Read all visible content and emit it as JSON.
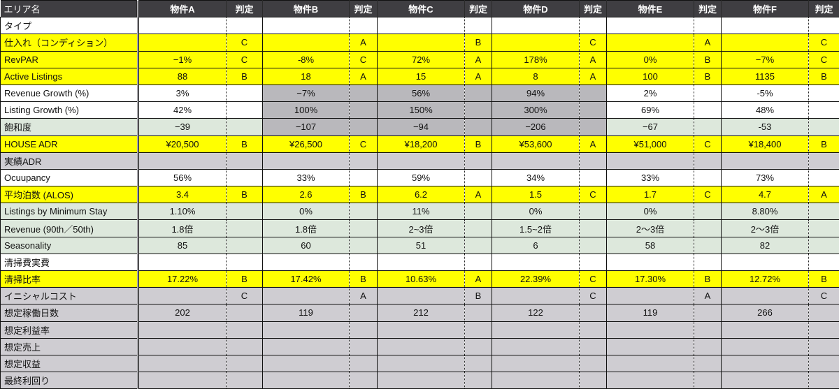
{
  "colors": {
    "header": "#3f3e42",
    "white": "#ffffff",
    "yellow": "#ffff00",
    "green": "#dde8dc",
    "grey": "#cfcdd2",
    "shaded": "#b9b8bc"
  },
  "header": {
    "label": "エリア名",
    "properties": [
      "物件A",
      "物件B",
      "物件C",
      "物件D",
      "物件E",
      "物件F"
    ],
    "judge_label": "判定"
  },
  "rows": [
    {
      "label": "タイプ",
      "style": "white",
      "values": [
        "",
        "",
        "",
        "",
        "",
        ""
      ],
      "judges": [
        "",
        "",
        "",
        "",
        "",
        ""
      ]
    },
    {
      "label": "仕入れ（コンディション）",
      "style": "yellow",
      "values": [
        "",
        "",
        "",
        "",
        "",
        ""
      ],
      "judges": [
        "C",
        "A",
        "B",
        "C",
        "A",
        "C"
      ]
    },
    {
      "label": "RevPAR",
      "style": "yellow",
      "values": [
        "−1%",
        "-8%",
        "72%",
        "178%",
        "0%",
        "−7%"
      ],
      "judges": [
        "C",
        "C",
        "A",
        "A",
        "B",
        "C"
      ]
    },
    {
      "label": "Active Listings",
      "style": "yellow",
      "values": [
        "88",
        "18",
        "15",
        "8",
        "100",
        "1135"
      ],
      "judges": [
        "B",
        "A",
        "A",
        "A",
        "B",
        "B"
      ]
    },
    {
      "label": "Revenue Growth (%)",
      "style": "white",
      "values": [
        "3%",
        "−7%",
        "56%",
        "94%",
        "2%",
        "-5%"
      ],
      "judges": [
        "",
        "",
        "",
        "",
        "",
        ""
      ],
      "shaded": [
        1,
        2,
        3
      ]
    },
    {
      "label": "Listing Growth (%)",
      "style": "white",
      "values": [
        "42%",
        "100%",
        "150%",
        "300%",
        "69%",
        "48%"
      ],
      "judges": [
        "",
        "",
        "",
        "",
        "",
        ""
      ],
      "shaded": [
        1,
        2,
        3
      ]
    },
    {
      "label": "飽和度",
      "style": "green",
      "values": [
        "−39",
        "−107",
        "−94",
        "−206",
        "−67",
        "-53"
      ],
      "judges": [
        "",
        "",
        "",
        "",
        "",
        ""
      ],
      "shaded": [
        1,
        2,
        3
      ]
    },
    {
      "label": "HOUSE ADR",
      "style": "yellow",
      "values": [
        "¥20,500",
        "¥26,500",
        "¥18,200",
        "¥53,600",
        "¥51,000",
        "¥18,400"
      ],
      "judges": [
        "B",
        "C",
        "B",
        "A",
        "C",
        "B"
      ]
    },
    {
      "label": "実績ADR",
      "style": "grey",
      "values": [
        "",
        "",
        "",
        "",
        "",
        ""
      ],
      "judges": [
        "",
        "",
        "",
        "",
        "",
        ""
      ]
    },
    {
      "label": "Ocuupancy",
      "style": "white",
      "values": [
        "56%",
        "33%",
        "59%",
        "34%",
        "33%",
        "73%"
      ],
      "judges": [
        "",
        "",
        "",
        "",
        "",
        ""
      ]
    },
    {
      "label": "平均泊数 (ALOS)",
      "style": "yellow",
      "values": [
        "3.4",
        "2.6",
        "6.2",
        "1.5",
        "1.7",
        "4.7"
      ],
      "judges": [
        "B",
        "B",
        "A",
        "C",
        "C",
        "A"
      ]
    },
    {
      "label": "Listings by Minimum Stay",
      "style": "green",
      "values": [
        "1.10%",
        "0%",
        "11%",
        "0%",
        "0%",
        "8.80%"
      ],
      "judges": [
        "",
        "",
        "",
        "",
        "",
        ""
      ]
    },
    {
      "label": "Revenue (90th／50th)",
      "style": "green",
      "values": [
        "1.8倍",
        "1.8倍",
        "2~3倍",
        "1.5~2倍",
        "2〜3倍",
        "2〜3倍"
      ],
      "judges": [
        "",
        "",
        "",
        "",
        "",
        ""
      ]
    },
    {
      "label": "Seasonality",
      "style": "green",
      "values": [
        "85",
        "60",
        "51",
        "6",
        "58",
        "82"
      ],
      "judges": [
        "",
        "",
        "",
        "",
        "",
        ""
      ]
    },
    {
      "label": "清掃費実費",
      "style": "white",
      "values": [
        "",
        "",
        "",
        "",
        "",
        ""
      ],
      "judges": [
        "",
        "",
        "",
        "",
        "",
        ""
      ]
    },
    {
      "label": "清掃比率",
      "style": "yellow",
      "values": [
        "17.22%",
        "17.42%",
        "10.63%",
        "22.39%",
        "17.30%",
        "12.72%"
      ],
      "judges": [
        "B",
        "B",
        "A",
        "C",
        "B",
        "B"
      ]
    },
    {
      "label": "イニシャルコスト",
      "style": "grey",
      "values": [
        "",
        "",
        "",
        "",
        "",
        ""
      ],
      "judges": [
        "C",
        "A",
        "B",
        "C",
        "A",
        "C"
      ]
    },
    {
      "label": "想定稼働日数",
      "style": "grey",
      "values": [
        "202",
        "119",
        "212",
        "122",
        "119",
        "266"
      ],
      "judges": [
        "",
        "",
        "",
        "",
        "",
        ""
      ]
    },
    {
      "label": "想定利益率",
      "style": "grey",
      "values": [
        "",
        "",
        "",
        "",
        "",
        ""
      ],
      "judges": [
        "",
        "",
        "",
        "",
        "",
        ""
      ]
    },
    {
      "label": "想定売上",
      "style": "grey",
      "values": [
        "",
        "",
        "",
        "",
        "",
        ""
      ],
      "judges": [
        "",
        "",
        "",
        "",
        "",
        ""
      ]
    },
    {
      "label": "想定収益",
      "style": "grey",
      "values": [
        "",
        "",
        "",
        "",
        "",
        ""
      ],
      "judges": [
        "",
        "",
        "",
        "",
        "",
        ""
      ]
    },
    {
      "label": "最終利回り",
      "style": "grey",
      "values": [
        "",
        "",
        "",
        "",
        "",
        ""
      ],
      "judges": [
        "",
        "",
        "",
        "",
        "",
        ""
      ]
    }
  ]
}
